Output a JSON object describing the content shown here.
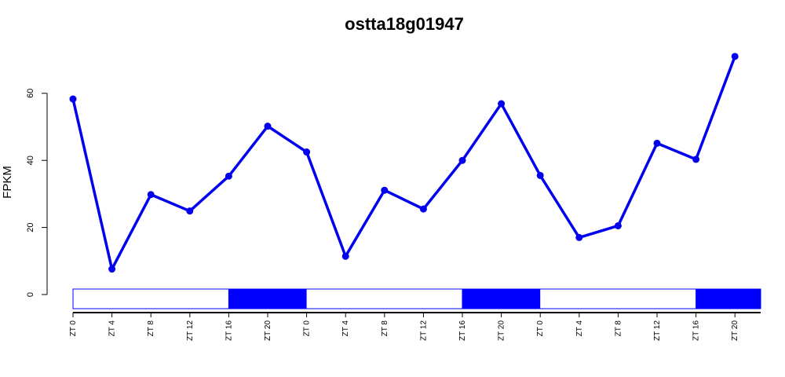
{
  "chart_data": {
    "type": "line",
    "title": "ostta18g01947",
    "xlabel": "",
    "ylabel": "FPKM",
    "ylim": [
      0,
      72
    ],
    "yticks": [
      "0",
      "20",
      "40",
      "60"
    ],
    "categories": [
      "ZT 0",
      "ZT 4",
      "ZT 8",
      "ZT 12",
      "ZT 16",
      "ZT 20",
      "ZT 0",
      "ZT 4",
      "ZT 8",
      "ZT 12",
      "ZT 16",
      "ZT 20",
      "ZT 0",
      "ZT 4",
      "ZT 8",
      "ZT 12",
      "ZT 16",
      "ZT 20"
    ],
    "series": [
      {
        "values": [
          58.3,
          7.6,
          29.8,
          24.9,
          35.3,
          50.2,
          42.5,
          11.4,
          31.1,
          25.5,
          40.0,
          56.9,
          35.5,
          17.0,
          20.5,
          45.1,
          40.3,
          71.0
        ]
      }
    ],
    "light_dark_bar": [
      "light",
      "light",
      "light",
      "light",
      "dark",
      "dark",
      "light",
      "light",
      "light",
      "light",
      "dark",
      "dark",
      "light",
      "light",
      "light",
      "light",
      "dark",
      "dark"
    ],
    "colors": {
      "line": "#0000ee",
      "dark_period": "#0000ff",
      "light_period": "#ffffff",
      "axis": "#000000"
    },
    "grid": false
  }
}
